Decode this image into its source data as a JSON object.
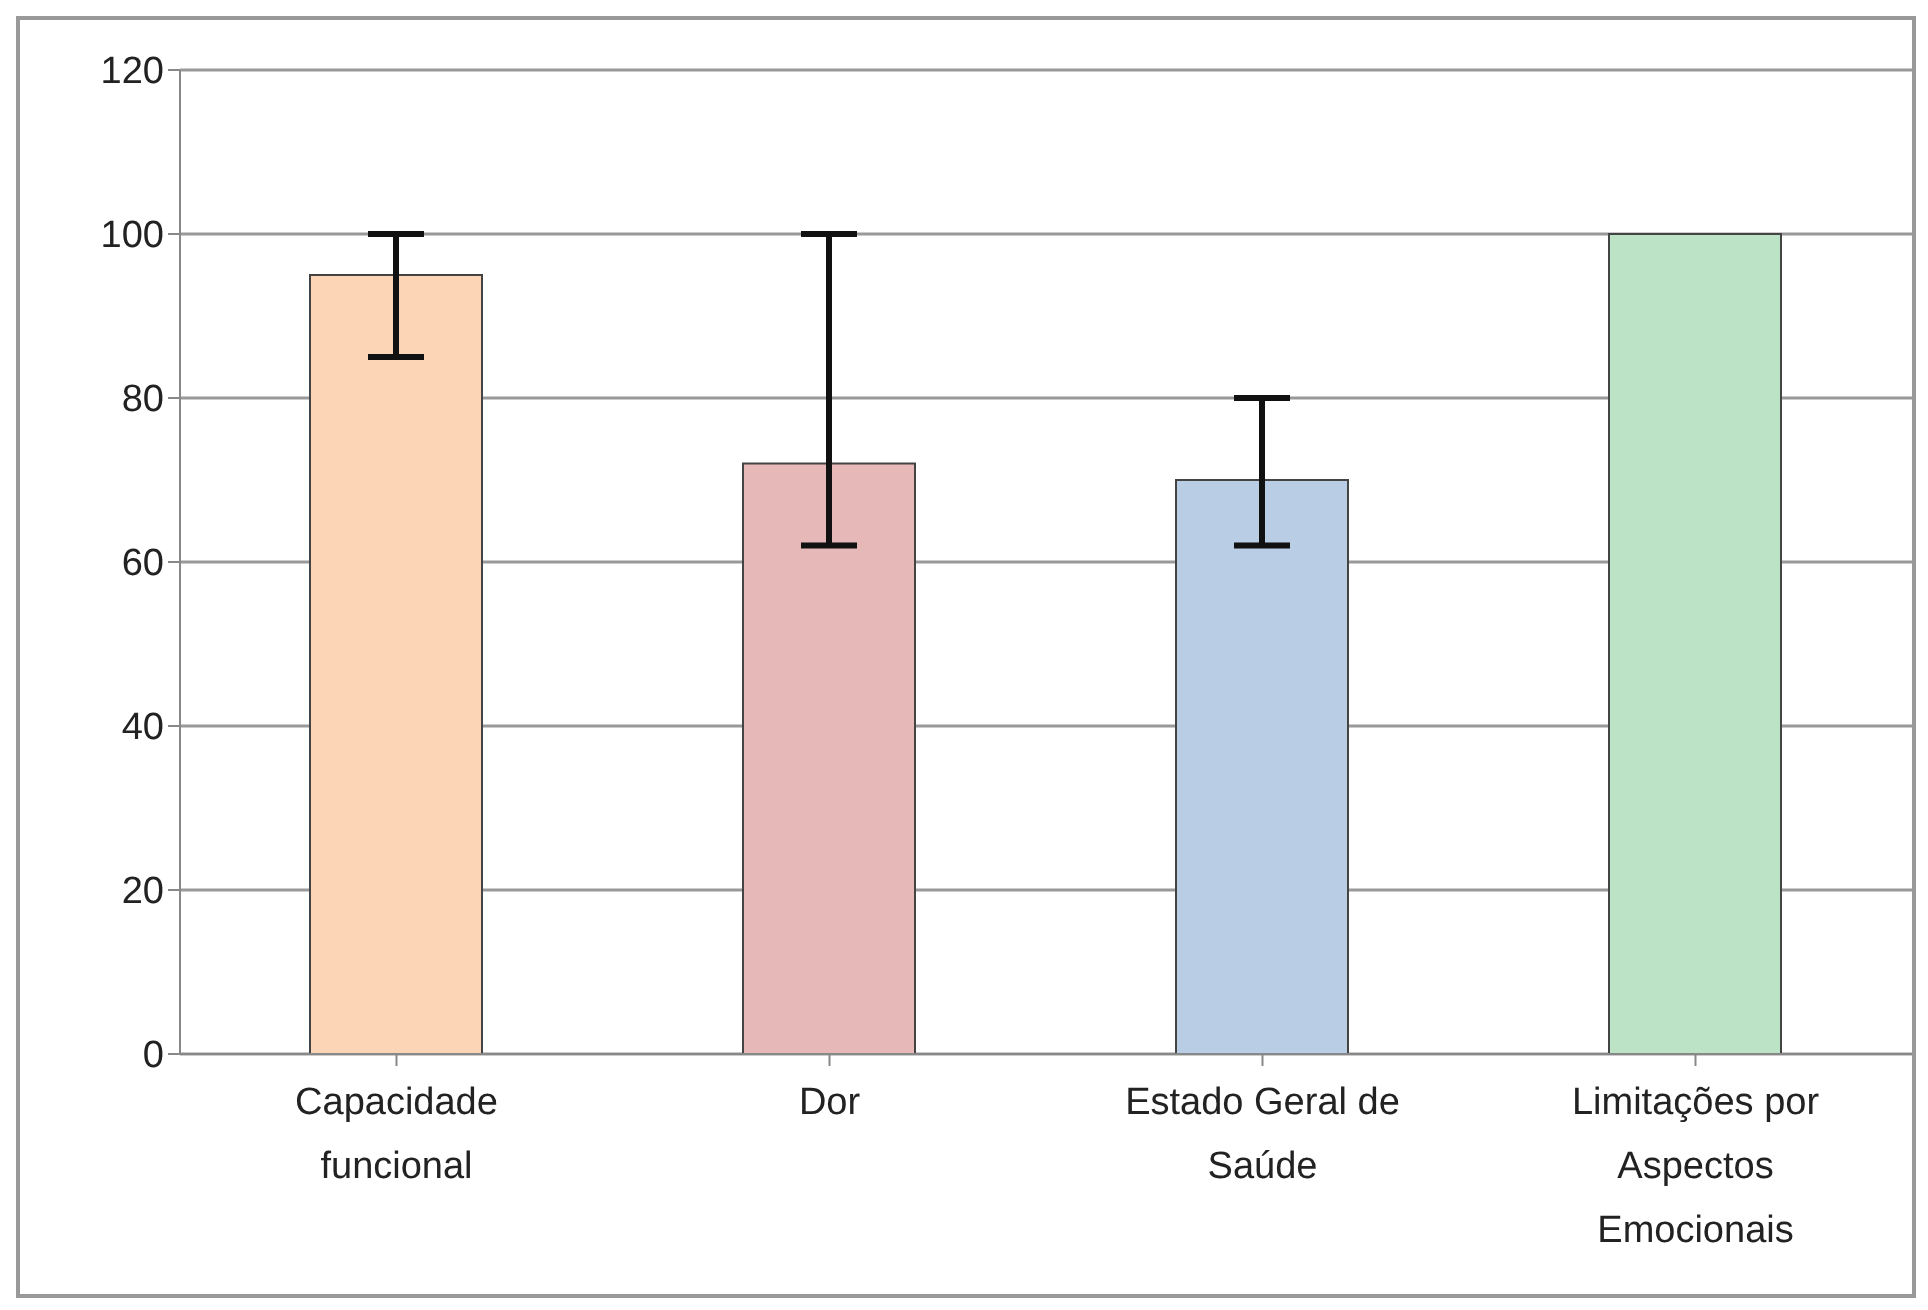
{
  "chart_data": {
    "type": "bar",
    "categories": [
      "Capacidade funcional",
      "Dor",
      "Estado Geral de Saúde",
      "Limitações por Aspectos Emocionais"
    ],
    "values": [
      95,
      72,
      70,
      100
    ],
    "colors": [
      "#fbd5b5",
      "#e6b9b8",
      "#b9cde5",
      "#bce3c6"
    ],
    "errors": [
      [
        85,
        100
      ],
      [
        62,
        100
      ],
      [
        62,
        80
      ],
      null
    ],
    "ylim": [
      0,
      120
    ],
    "yticks": [
      0,
      20,
      40,
      60,
      80,
      100,
      120
    ],
    "grid": "y"
  }
}
